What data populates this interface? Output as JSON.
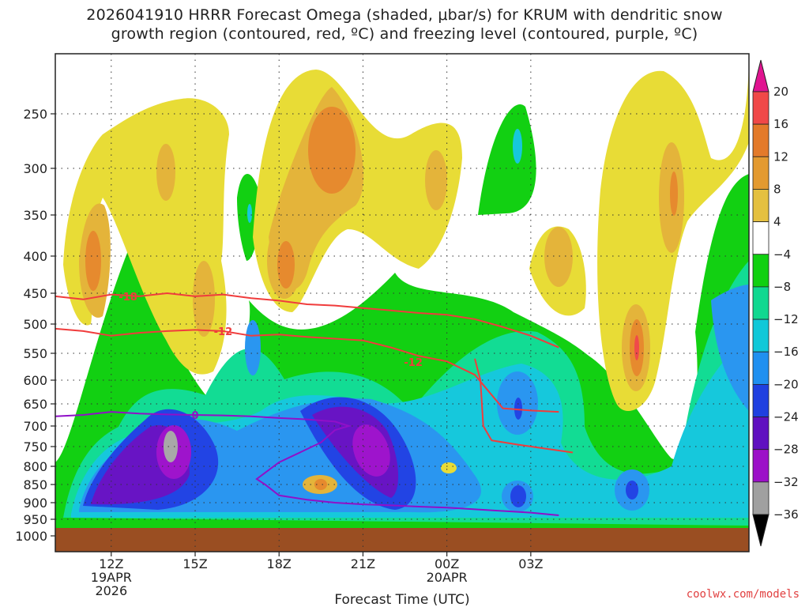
{
  "title_line1": "2026041910 HRRR Forecast Omega (shaded, μbar/s) for KRUM with dendritic snow",
  "title_line2": "growth region (contoured, red, ºC) and freezing level (contoured, purple, ºC)",
  "credit": "coolwx.com/models",
  "chart_data": {
    "type": "heatmap",
    "xlabel": "Forecast Time (UTC)",
    "ylabel": "",
    "x_range_hours_utc": [
      10,
      34.8
    ],
    "y_range_hpa": [
      1000,
      200
    ],
    "y_ticks": [
      250,
      300,
      350,
      400,
      450,
      500,
      550,
      600,
      650,
      700,
      750,
      800,
      850,
      900,
      950,
      1000
    ],
    "x_ticks": [
      {
        "hour": 12,
        "label": "12Z",
        "sub1": "19APR",
        "sub2": "2026"
      },
      {
        "hour": 15,
        "label": "15Z",
        "sub1": "",
        "sub2": ""
      },
      {
        "hour": 18,
        "label": "18Z",
        "sub1": "",
        "sub2": ""
      },
      {
        "hour": 21,
        "label": "21Z",
        "sub1": "",
        "sub2": ""
      },
      {
        "hour": 24,
        "label": "00Z",
        "sub1": "20APR",
        "sub2": ""
      },
      {
        "hour": 27,
        "label": "03Z",
        "sub1": "",
        "sub2": ""
      }
    ],
    "colorbar": {
      "levels": [
        20,
        16,
        12,
        8,
        4,
        -4,
        -8,
        -12,
        -16,
        -20,
        -24,
        -28,
        -32,
        -36
      ],
      "labels": [
        "20",
        "16",
        "12",
        "8",
        "4",
        "−4",
        "−8",
        "−12",
        "−16",
        "−20",
        "−24",
        "−28",
        "−32",
        "−36"
      ],
      "colors": [
        "#e8e030",
        "#e4c040",
        "#e39a30",
        "#e37a2a",
        "#f04848",
        "#e01490",
        "#a0a0a0",
        "#9c10c8",
        "#6010c0",
        "#2040e0",
        "#2090f0",
        "#10c8d8",
        "#10d890",
        "#10d010",
        "#ffffff"
      ]
    },
    "contours_red": [
      {
        "label": "-18",
        "points": [
          [
            10,
            455
          ],
          [
            11,
            460
          ],
          [
            12,
            452
          ],
          [
            13,
            455
          ],
          [
            14,
            450
          ],
          [
            15,
            455
          ],
          [
            16,
            452
          ],
          [
            17,
            458
          ],
          [
            18,
            462
          ],
          [
            19,
            468
          ],
          [
            20,
            470
          ],
          [
            21,
            474
          ],
          [
            22,
            478
          ],
          [
            23,
            482
          ],
          [
            24,
            485
          ],
          [
            25,
            492
          ],
          [
            26,
            505
          ],
          [
            27,
            520
          ],
          [
            28,
            540
          ]
        ]
      },
      {
        "label": "-12",
        "points": [
          [
            10,
            508
          ],
          [
            11,
            512
          ],
          [
            12,
            520
          ],
          [
            13,
            515
          ],
          [
            14,
            512
          ],
          [
            15,
            510
          ],
          [
            16,
            512
          ],
          [
            17,
            520
          ],
          [
            18,
            518
          ],
          [
            19,
            522
          ],
          [
            20,
            525
          ],
          [
            21,
            528
          ],
          [
            22,
            540
          ],
          [
            23,
            555
          ],
          [
            24,
            565
          ],
          [
            25,
            590
          ],
          [
            26,
            660
          ],
          [
            27,
            665
          ],
          [
            28,
            668
          ]
        ]
      },
      {
        "label": "",
        "points": [
          [
            25,
            560
          ],
          [
            25.2,
            600
          ],
          [
            25.3,
            700
          ],
          [
            25.6,
            735
          ],
          [
            26.5,
            745
          ],
          [
            27.5,
            755
          ],
          [
            28.5,
            765
          ]
        ]
      }
    ],
    "contours_purple": [
      {
        "label": "0",
        "points": [
          [
            10,
            678
          ],
          [
            11,
            675
          ],
          [
            12,
            668
          ],
          [
            13,
            672
          ],
          [
            14,
            674
          ],
          [
            15,
            675
          ],
          [
            16,
            676
          ],
          [
            17,
            678
          ],
          [
            18,
            682
          ],
          [
            19,
            685
          ],
          [
            20,
            690
          ],
          [
            20.5,
            700
          ],
          [
            20,
            710
          ],
          [
            19.5,
            740
          ],
          [
            18,
            790
          ],
          [
            17.2,
            835
          ],
          [
            17.5,
            850
          ],
          [
            18,
            880
          ],
          [
            19,
            892
          ],
          [
            20,
            900
          ],
          [
            21,
            905
          ],
          [
            22,
            908
          ],
          [
            23,
            912
          ],
          [
            24,
            915
          ],
          [
            25,
            920
          ],
          [
            26,
            925
          ],
          [
            27,
            930
          ],
          [
            28,
            938
          ]
        ]
      }
    ],
    "legend": "right-vertical-colorbar"
  }
}
